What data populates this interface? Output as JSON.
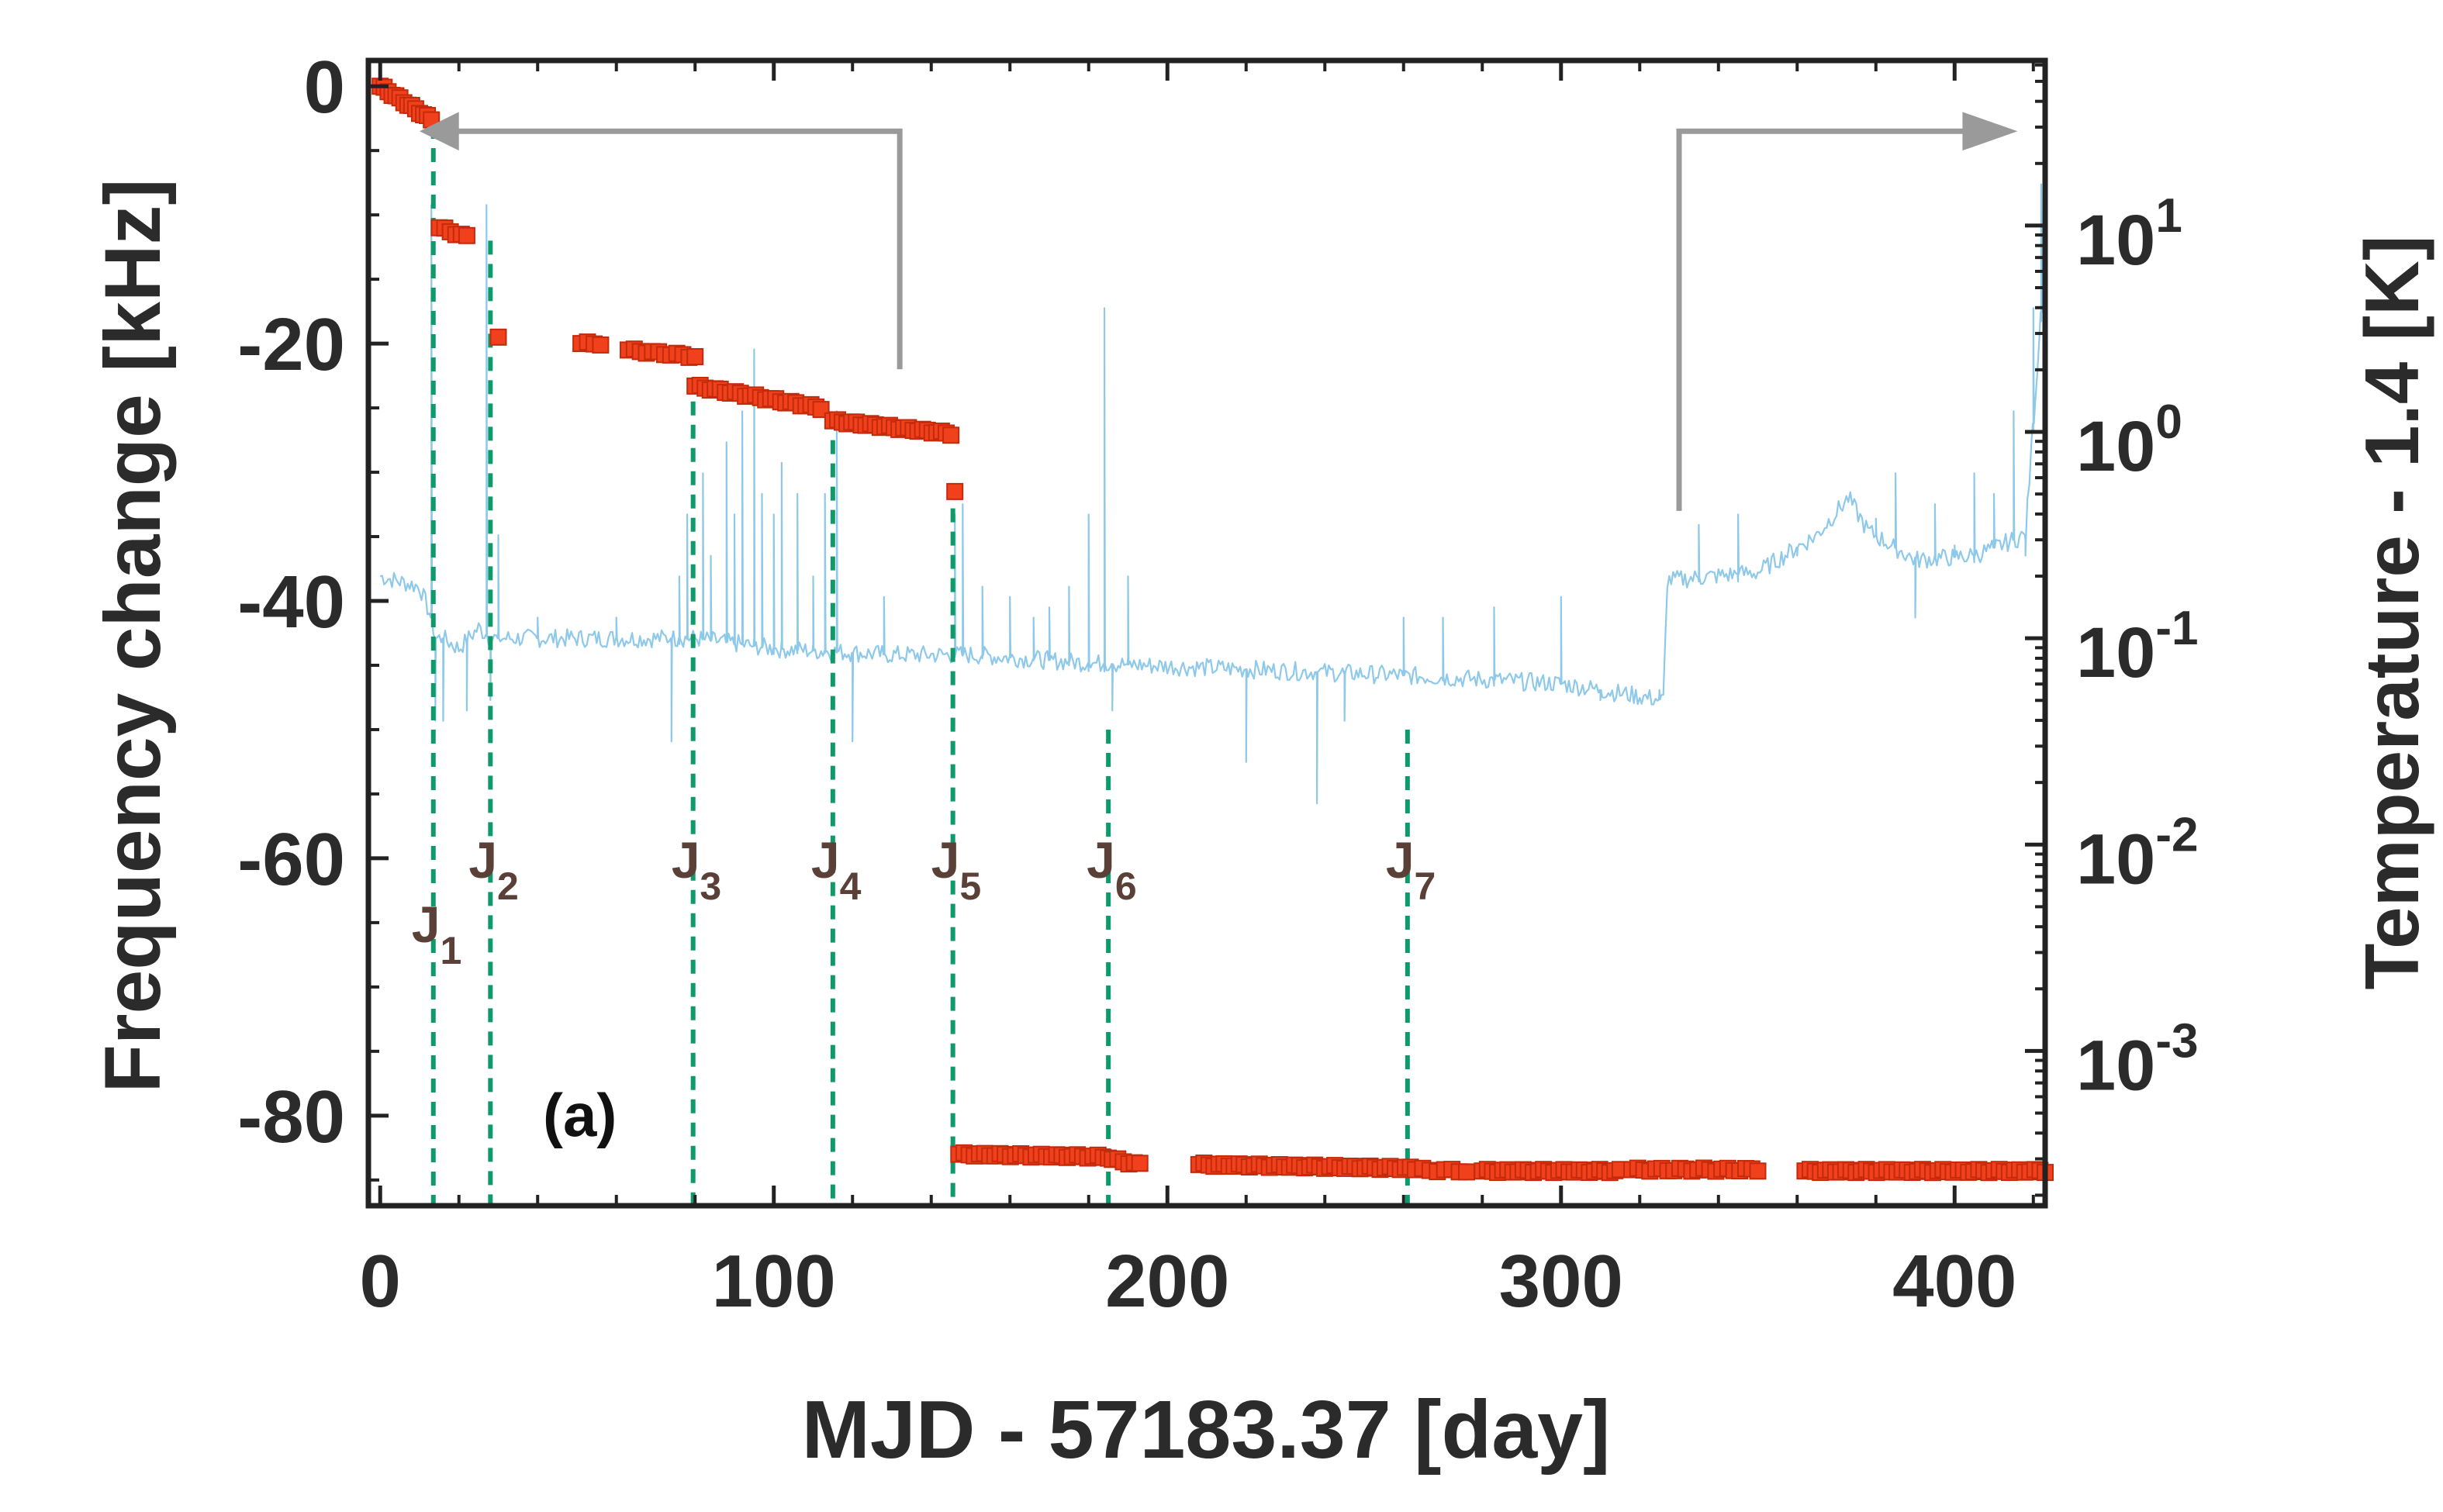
{
  "chart_data": {
    "type": "scatter",
    "panel_label": "(a)",
    "xlabel": "MJD - 57183.37 [day]",
    "ylabel_left": "Frequency change [kHz]",
    "ylabel_right": "Temperature - 1.4 [K]",
    "xlim": [
      -3,
      423
    ],
    "ylim_left": [
      -87,
      2
    ],
    "ylim_right_log10": [
      -3.75,
      1.8
    ],
    "x_ticks": [
      {
        "value": 0,
        "label": "0"
      },
      {
        "value": 100,
        "label": "100"
      },
      {
        "value": 200,
        "label": "200"
      },
      {
        "value": 300,
        "label": "300"
      },
      {
        "value": 400,
        "label": "400"
      }
    ],
    "y_left_ticks": [
      {
        "value": 0,
        "label": "0"
      },
      {
        "value": -20,
        "label": "-20"
      },
      {
        "value": -40,
        "label": "-40"
      },
      {
        "value": -60,
        "label": "-60"
      },
      {
        "value": -80,
        "label": "-80"
      }
    ],
    "y_right_ticks": [
      {
        "exp": 1,
        "base": "10",
        "sup": "1"
      },
      {
        "exp": 0,
        "base": "10",
        "sup": "0"
      },
      {
        "exp": -1,
        "base": "10",
        "sup": "-1"
      },
      {
        "exp": -2,
        "base": "10",
        "sup": "-2"
      },
      {
        "exp": -3,
        "base": "10",
        "sup": "-3"
      }
    ],
    "colors": {
      "frequency": "#f0401c",
      "frequency_edge": "#c42a0c",
      "temperature": "#8ec9ea",
      "jumps": "#0f9a6a",
      "arrows": "#9a9a9a",
      "axes": "#222222"
    },
    "series": [
      {
        "name": "Frequency change",
        "axis": "left",
        "segments": [
          {
            "x0": 0,
            "x1": 13,
            "y0": 0,
            "y1": -2.6,
            "n": 14
          },
          {
            "x0": 15,
            "x1": 22,
            "y0": -11,
            "y1": -11.7,
            "n": 6
          },
          {
            "x0": 30,
            "x1": 31,
            "y0": -19.5,
            "y1": -19.5,
            "n": 1
          },
          {
            "x0": 51,
            "x1": 56,
            "y0": -20,
            "y1": -20,
            "n": 4
          },
          {
            "x0": 63,
            "x1": 80,
            "y0": -20.5,
            "y1": -21,
            "n": 12
          },
          {
            "x0": 80,
            "x1": 112,
            "y0": -23.3,
            "y1": -25,
            "n": 26
          },
          {
            "x0": 115,
            "x1": 145,
            "y0": -26,
            "y1": -27,
            "n": 26
          },
          {
            "x0": 146,
            "x1": 147,
            "y0": -31.5,
            "y1": -31.5,
            "n": 1
          },
          {
            "x0": 147,
            "x1": 185,
            "y0": -83,
            "y1": -83.2,
            "n": 30
          },
          {
            "x0": 186,
            "x1": 193,
            "y0": -83.4,
            "y1": -83.8,
            "n": 6
          },
          {
            "x0": 208,
            "x1": 263,
            "y0": -83.8,
            "y1": -84.1,
            "n": 44
          },
          {
            "x0": 263,
            "x1": 276,
            "y0": -84.2,
            "y1": -84.3,
            "n": 8
          },
          {
            "x0": 280,
            "x1": 315,
            "y0": -84.3,
            "y1": -84.3,
            "n": 28
          },
          {
            "x0": 318,
            "x1": 350,
            "y0": -84.2,
            "y1": -84.2,
            "n": 22
          },
          {
            "x0": 362,
            "x1": 423,
            "y0": -84.3,
            "y1": -84.3,
            "n": 48
          }
        ]
      },
      {
        "name": "Temperature - 1.4",
        "axis": "right",
        "scale": "log10",
        "baseline": [
          [
            0,
            -0.7
          ],
          [
            10,
            -0.75
          ],
          [
            13,
            -0.9
          ],
          [
            14,
            -1.0
          ],
          [
            16,
            -1.0
          ],
          [
            20,
            -1.05
          ],
          [
            25,
            -0.95
          ],
          [
            28,
            -1.0
          ],
          [
            35,
            -1.0
          ],
          [
            50,
            -1.0
          ],
          [
            80,
            -1.0
          ],
          [
            100,
            -1.05
          ],
          [
            130,
            -1.08
          ],
          [
            150,
            -1.08
          ],
          [
            180,
            -1.12
          ],
          [
            220,
            -1.15
          ],
          [
            260,
            -1.18
          ],
          [
            300,
            -1.22
          ],
          [
            326,
            -1.3
          ],
          [
            327,
            -0.72
          ],
          [
            350,
            -0.68
          ],
          [
            365,
            -0.5
          ],
          [
            373,
            -0.32
          ],
          [
            378,
            -0.48
          ],
          [
            390,
            -0.62
          ],
          [
            405,
            -0.6
          ],
          [
            418,
            -0.5
          ],
          [
            423,
            0.85
          ]
        ],
        "spikes": [
          [
            13,
            1.1
          ],
          [
            14,
            -1.4
          ],
          [
            16,
            -1.4
          ],
          [
            22,
            -1.35
          ],
          [
            27,
            1.1
          ],
          [
            28,
            -1.3
          ],
          [
            30,
            -0.5
          ],
          [
            40,
            -0.9
          ],
          [
            60,
            -0.9
          ],
          [
            74,
            -1.5
          ],
          [
            76,
            -0.7
          ],
          [
            78,
            -0.4
          ],
          [
            82,
            -0.2
          ],
          [
            84,
            -0.6
          ],
          [
            88,
            -0.05
          ],
          [
            90,
            -0.4
          ],
          [
            92,
            0.1
          ],
          [
            95,
            0.4
          ],
          [
            97,
            -0.3
          ],
          [
            100,
            -0.4
          ],
          [
            102,
            -0.15
          ],
          [
            106,
            -0.3
          ],
          [
            110,
            -0.7
          ],
          [
            113,
            -0.3
          ],
          [
            116,
            0.1
          ],
          [
            120,
            -1.5
          ],
          [
            128,
            -0.8
          ],
          [
            146,
            -0.4
          ],
          [
            148,
            -0.35
          ],
          [
            153,
            -0.75
          ],
          [
            160,
            -0.8
          ],
          [
            166,
            -0.9
          ],
          [
            170,
            -0.85
          ],
          [
            175,
            -0.75
          ],
          [
            180,
            -0.4
          ],
          [
            184,
            0.6
          ],
          [
            186,
            -1.35
          ],
          [
            190,
            -0.7
          ],
          [
            220,
            -1.6
          ],
          [
            238,
            -1.8
          ],
          [
            245,
            -1.4
          ],
          [
            260,
            -0.9
          ],
          [
            270,
            -0.9
          ],
          [
            283,
            -0.85
          ],
          [
            300,
            -0.8
          ],
          [
            310,
            -1.3
          ],
          [
            325,
            -1.25
          ],
          [
            335,
            -0.45
          ],
          [
            345,
            -0.4
          ],
          [
            360,
            -0.6
          ],
          [
            380,
            -0.42
          ],
          [
            385,
            -0.2
          ],
          [
            390,
            -0.9
          ],
          [
            395,
            -0.35
          ],
          [
            400,
            -0.55
          ],
          [
            405,
            -0.2
          ],
          [
            410,
            -0.3
          ],
          [
            415,
            0.1
          ],
          [
            418,
            -0.6
          ],
          [
            420,
            0.6
          ],
          [
            422,
            1.2
          ]
        ]
      }
    ],
    "jumps": [
      {
        "label": "J",
        "sub": "1",
        "x": 13.5,
        "y_top": -3,
        "label_y": -66.5
      },
      {
        "label": "J",
        "sub": "2",
        "x": 28,
        "y_top": -12,
        "label_y": -61.5
      },
      {
        "label": "J",
        "sub": "3",
        "x": 79.5,
        "y_top": -24.5,
        "label_y": -61.5
      },
      {
        "label": "J",
        "sub": "4",
        "x": 115,
        "y_top": -27.5,
        "label_y": -61.5
      },
      {
        "label": "J",
        "sub": "5",
        "x": 145.5,
        "y_top": -31,
        "label_y": -61.5
      },
      {
        "label": "J",
        "sub": "6",
        "x": 185,
        "y_top": -50,
        "label_y": -61.5
      },
      {
        "label": "J",
        "sub": "7",
        "x": 261,
        "y_top": -50,
        "label_y": -61.5
      }
    ]
  }
}
